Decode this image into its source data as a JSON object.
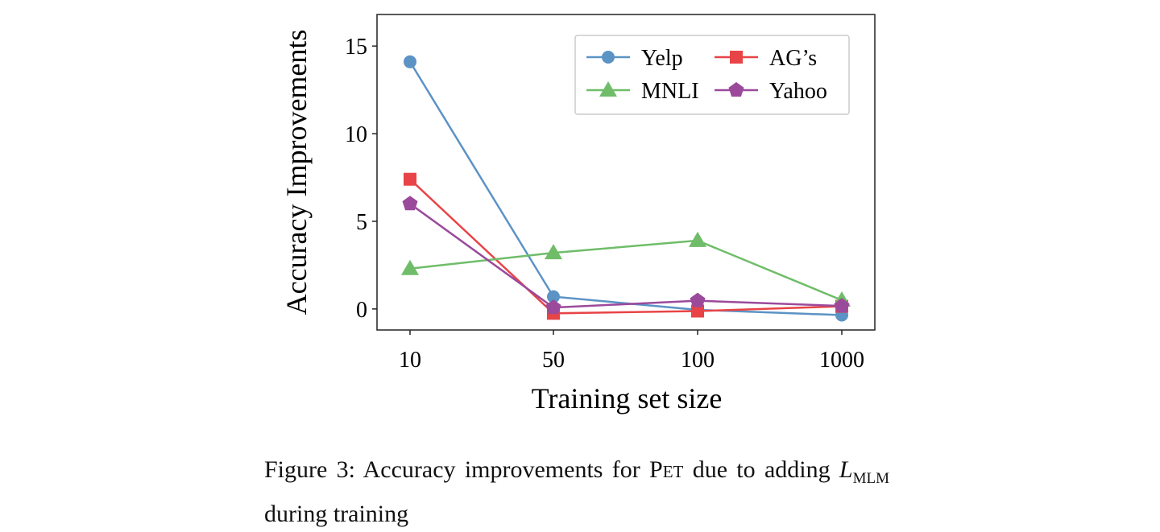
{
  "chart_data": {
    "type": "line",
    "xlabel": "Training set size",
    "ylabel": "Accuracy Improvements",
    "categories": [
      "10",
      "50",
      "100",
      "1000"
    ],
    "ylim": [
      -1.2,
      16.8
    ],
    "yticks": [
      "0",
      "5",
      "10",
      "15"
    ],
    "grid": false,
    "legend_placement": "top-right",
    "series": [
      {
        "name": "Yelp",
        "color": "#5b93c5",
        "marker": "circle",
        "values": [
          14.1,
          0.7,
          -0.05,
          -0.35
        ]
      },
      {
        "name": "AG’s",
        "color": "#e84447",
        "marker": "square",
        "values": [
          7.4,
          -0.25,
          -0.12,
          0.15
        ]
      },
      {
        "name": "MNLI",
        "color": "#6fbd69",
        "marker": "triangle",
        "values": [
          2.3,
          3.2,
          3.9,
          0.5
        ]
      },
      {
        "name": "Yahoo",
        "color": "#9b4a9b",
        "marker": "pentagon",
        "values": [
          6.0,
          0.08,
          0.47,
          0.17
        ]
      }
    ]
  },
  "caption": {
    "prefix": "Figure 3:  Accuracy improvements for ",
    "pet": "Pet",
    "middle": " due to adding ",
    "l": "L",
    "sub": "MLM",
    "suffix": " during training"
  }
}
